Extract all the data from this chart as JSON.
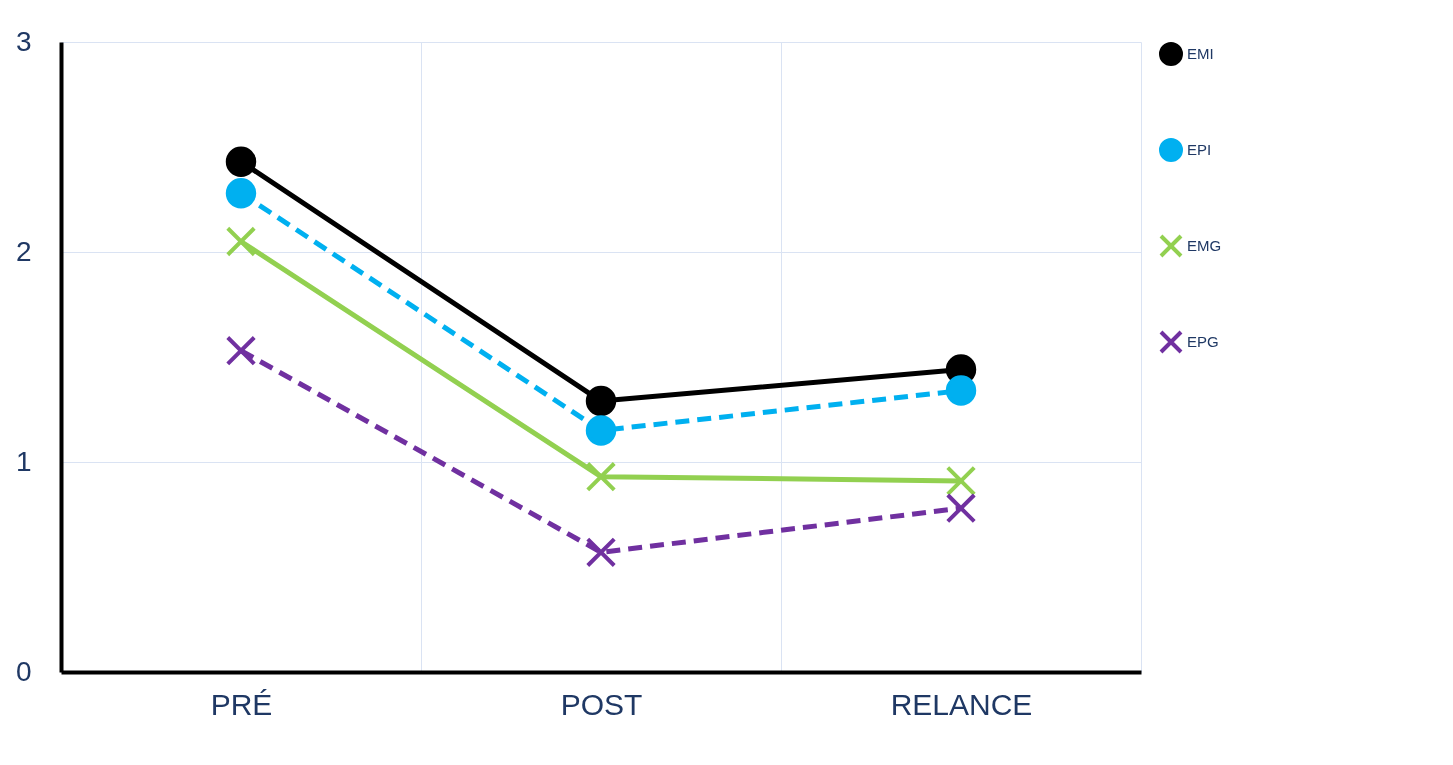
{
  "chart_data": {
    "type": "line",
    "categories": [
      "PRÉ",
      "POST",
      "RELANCE"
    ],
    "series": [
      {
        "name": "EMI",
        "color": "#000000",
        "values": [
          2.43,
          1.29,
          1.44
        ],
        "marker": "circle",
        "line_style": "solid"
      },
      {
        "name": "EPI",
        "color": "#00b0f0",
        "values": [
          2.28,
          1.15,
          1.34
        ],
        "marker": "circle",
        "line_style": "dashed"
      },
      {
        "name": "EMG",
        "color": "#92d050",
        "values": [
          2.05,
          0.93,
          0.91
        ],
        "marker": "cross",
        "line_style": "solid"
      },
      {
        "name": "EPG",
        "color": "#7030a0",
        "values": [
          1.53,
          0.57,
          0.78
        ],
        "marker": "cross",
        "line_style": "dashed"
      }
    ],
    "ylim": [
      0,
      3
    ],
    "yticks": [
      0,
      1,
      2,
      3
    ],
    "grid": true,
    "legend": "right"
  }
}
